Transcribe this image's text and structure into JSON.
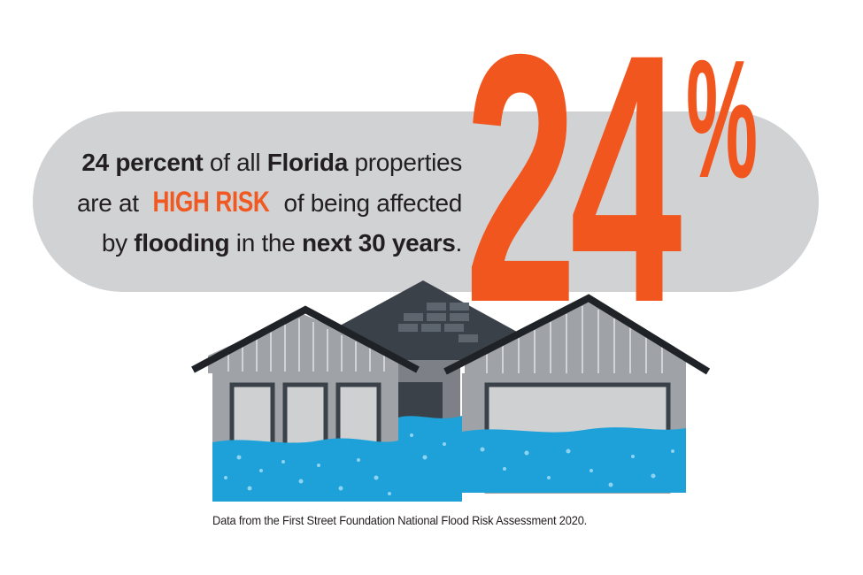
{
  "headline": {
    "line1": {
      "b1": "24 percent",
      "t1": " of all ",
      "b2": "Florida",
      "t2": " properties"
    },
    "line2": {
      "t1": "are at ",
      "risk": "HIGH RISK",
      "t2": " of being affected"
    },
    "line3": {
      "t1": "by ",
      "b1": "flooding",
      "t2": " in the ",
      "b2": "next 30 years",
      "t3": "."
    }
  },
  "stat": {
    "number": "24",
    "percent_sign": "%"
  },
  "source_note": "Data from the First Street Foundation National Flood Risk Assessment 2020.",
  "colors": {
    "accent_orange": "#f0561e",
    "pill_gray": "#d1d2d4",
    "wall_gray": "#9fa2a6",
    "roof_dark": "#3b4148",
    "water_blue": "#1ea1d8",
    "water_bubble": "#8fd3f2"
  },
  "illustration": {
    "name": "flooded-house-illustration"
  }
}
